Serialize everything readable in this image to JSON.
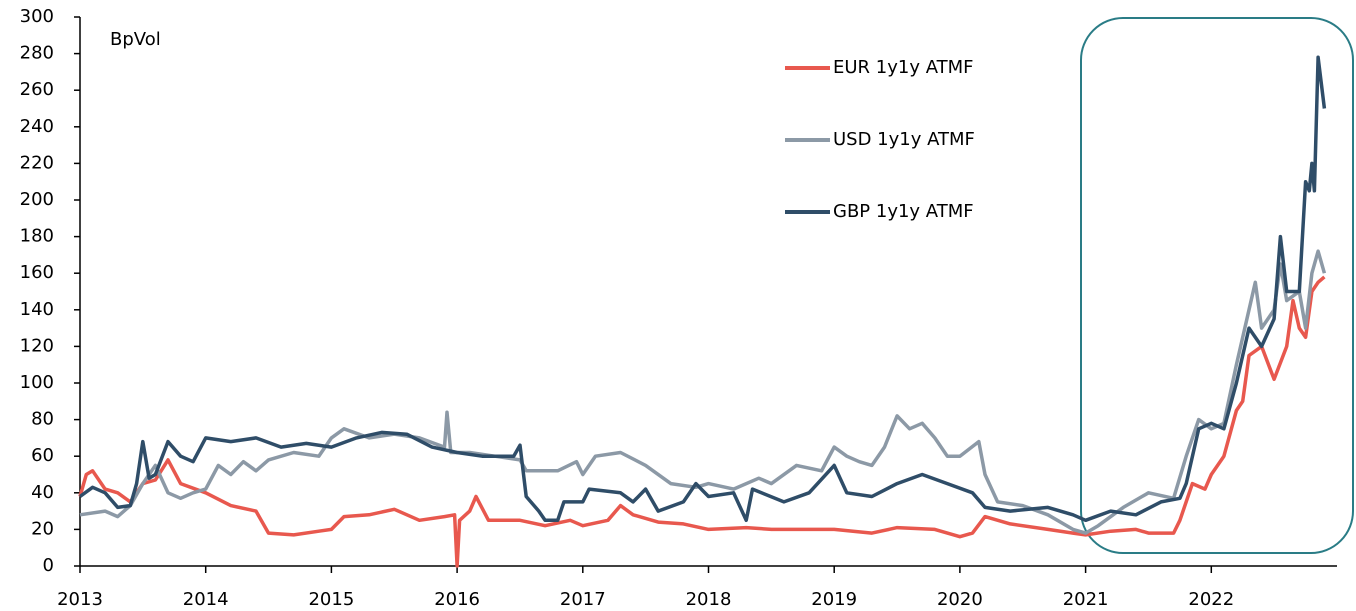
{
  "chart_data": {
    "type": "line",
    "y_label": "BpVol",
    "xlim": [
      2013,
      2023
    ],
    "xticks": [
      2013,
      2014,
      2015,
      2016,
      2017,
      2018,
      2019,
      2020,
      2021,
      2022
    ],
    "ylim": [
      0,
      300
    ],
    "yticks": [
      0,
      20,
      40,
      60,
      80,
      100,
      120,
      140,
      160,
      180,
      200,
      220,
      240,
      260,
      280,
      300
    ],
    "grid": false,
    "legend": "upper right",
    "series": [
      {
        "name": "EUR 1y1y ATMF",
        "color": "#e8584e",
        "x": [
          2013.0,
          2013.05,
          2013.1,
          2013.2,
          2013.3,
          2013.4,
          2013.5,
          2013.6,
          2013.7,
          2013.8,
          2014.0,
          2014.2,
          2014.4,
          2014.5,
          2014.7,
          2014.9,
          2015.0,
          2015.1,
          2015.3,
          2015.5,
          2015.7,
          2015.9,
          2015.98,
          2016.0,
          2016.02,
          2016.1,
          2016.15,
          2016.25,
          2016.5,
          2016.7,
          2016.9,
          2017.0,
          2017.2,
          2017.3,
          2017.4,
          2017.6,
          2017.8,
          2018.0,
          2018.3,
          2018.5,
          2018.8,
          2019.0,
          2019.3,
          2019.5,
          2019.8,
          2020.0,
          2020.1,
          2020.2,
          2020.4,
          2020.7,
          2020.9,
          2021.0,
          2021.2,
          2021.4,
          2021.5,
          2021.7,
          2021.75,
          2021.85,
          2021.95,
          2022.0,
          2022.1,
          2022.2,
          2022.25,
          2022.3,
          2022.4,
          2022.5,
          2022.6,
          2022.65,
          2022.7,
          2022.75,
          2022.8,
          2022.85,
          2022.9
        ],
        "values": [
          38,
          50,
          52,
          42,
          40,
          35,
          45,
          47,
          58,
          45,
          40,
          33,
          30,
          18,
          17,
          19,
          20,
          27,
          28,
          31,
          25,
          27,
          28,
          0,
          25,
          30,
          38,
          25,
          25,
          22,
          25,
          22,
          25,
          33,
          28,
          24,
          23,
          20,
          21,
          20,
          20,
          20,
          18,
          21,
          20,
          16,
          18,
          27,
          23,
          20,
          18,
          17,
          19,
          20,
          18,
          18,
          25,
          45,
          42,
          50,
          60,
          85,
          90,
          115,
          120,
          102,
          120,
          145,
          130,
          125,
          150,
          155,
          158
        ]
      },
      {
        "name": "USD 1y1y ATMF",
        "color": "#8c99a6",
        "x": [
          2013.0,
          2013.2,
          2013.3,
          2013.4,
          2013.5,
          2013.6,
          2013.7,
          2013.8,
          2013.9,
          2014.0,
          2014.1,
          2014.2,
          2014.3,
          2014.4,
          2014.5,
          2014.7,
          2014.9,
          2015.0,
          2015.1,
          2015.3,
          2015.5,
          2015.7,
          2015.9,
          2015.92,
          2015.95,
          2016.1,
          2016.3,
          2016.5,
          2016.55,
          2016.8,
          2016.95,
          2017.0,
          2017.1,
          2017.3,
          2017.5,
          2017.7,
          2017.9,
          2018.0,
          2018.2,
          2018.4,
          2018.5,
          2018.7,
          2018.9,
          2019.0,
          2019.1,
          2019.2,
          2019.3,
          2019.4,
          2019.5,
          2019.6,
          2019.7,
          2019.8,
          2019.9,
          2020.0,
          2020.15,
          2020.2,
          2020.3,
          2020.5,
          2020.7,
          2020.9,
          2021.0,
          2021.1,
          2021.3,
          2021.5,
          2021.7,
          2021.8,
          2021.9,
          2022.0,
          2022.1,
          2022.2,
          2022.25,
          2022.35,
          2022.4,
          2022.5,
          2022.55,
          2022.6,
          2022.7,
          2022.75,
          2022.8,
          2022.85,
          2022.9
        ],
        "values": [
          28,
          30,
          27,
          33,
          45,
          55,
          40,
          37,
          40,
          42,
          55,
          50,
          57,
          52,
          58,
          62,
          60,
          70,
          75,
          70,
          72,
          70,
          65,
          84,
          62,
          62,
          60,
          58,
          52,
          52,
          57,
          50,
          60,
          62,
          55,
          45,
          43,
          45,
          42,
          48,
          45,
          55,
          52,
          65,
          60,
          57,
          55,
          65,
          82,
          75,
          78,
          70,
          60,
          60,
          68,
          50,
          35,
          33,
          28,
          20,
          18,
          22,
          32,
          40,
          37,
          60,
          80,
          75,
          78,
          110,
          125,
          155,
          130,
          140,
          165,
          145,
          150,
          130,
          160,
          172,
          160
        ]
      },
      {
        "name": "GBP 1y1y ATMF",
        "color": "#2f4d68",
        "x": [
          2013.0,
          2013.1,
          2013.2,
          2013.3,
          2013.4,
          2013.45,
          2013.5,
          2013.55,
          2013.6,
          2013.7,
          2013.8,
          2013.9,
          2014.0,
          2014.2,
          2014.4,
          2014.6,
          2014.8,
          2015.0,
          2015.2,
          2015.4,
          2015.6,
          2015.8,
          2016.0,
          2016.2,
          2016.45,
          2016.5,
          2016.55,
          2016.65,
          2016.7,
          2016.8,
          2016.85,
          2017.0,
          2017.05,
          2017.3,
          2017.4,
          2017.5,
          2017.6,
          2017.8,
          2017.9,
          2018.0,
          2018.2,
          2018.3,
          2018.35,
          2018.6,
          2018.8,
          2019.0,
          2019.1,
          2019.3,
          2019.5,
          2019.7,
          2019.9,
          2020.1,
          2020.2,
          2020.4,
          2020.7,
          2020.9,
          2021.0,
          2021.2,
          2021.4,
          2021.6,
          2021.75,
          2021.8,
          2021.9,
          2022.0,
          2022.1,
          2022.2,
          2022.3,
          2022.4,
          2022.5,
          2022.55,
          2022.6,
          2022.7,
          2022.75,
          2022.78,
          2022.8,
          2022.82,
          2022.85,
          2022.9
        ],
        "values": [
          38,
          43,
          40,
          32,
          33,
          45,
          68,
          48,
          50,
          68,
          60,
          57,
          70,
          68,
          70,
          65,
          67,
          65,
          70,
          73,
          72,
          65,
          62,
          60,
          60,
          66,
          38,
          30,
          25,
          25,
          35,
          35,
          42,
          40,
          35,
          42,
          30,
          35,
          45,
          38,
          40,
          25,
          42,
          35,
          40,
          55,
          40,
          38,
          45,
          50,
          45,
          40,
          32,
          30,
          32,
          28,
          25,
          30,
          28,
          35,
          37,
          45,
          75,
          78,
          75,
          100,
          130,
          120,
          135,
          180,
          150,
          150,
          210,
          205,
          220,
          205,
          278,
          250
        ]
      }
    ]
  }
}
